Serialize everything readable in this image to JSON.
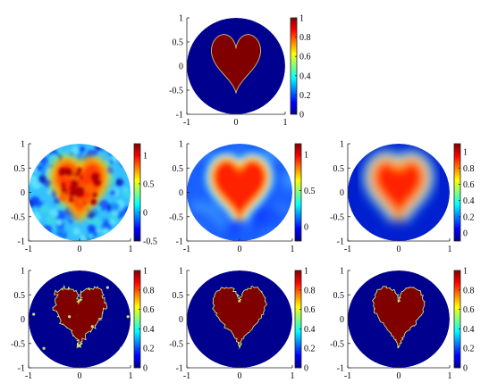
{
  "figure": {
    "layout": "3 rows; top row single centered panel, rows 2 and 3 have three panels each",
    "colormap": "jet",
    "disk_color": "#00008f",
    "object_color": "#800000",
    "object_shape": "heart",
    "domain_shape": "unit disk"
  },
  "chart_data": [
    {
      "type": "heatmap",
      "row": 1,
      "col": 2,
      "panel_variant": "exact",
      "xlim": [
        -1,
        1
      ],
      "ylim": [
        -1,
        1
      ],
      "xticks": [
        "-1",
        "0",
        "1"
      ],
      "yticks": [
        "1",
        "0.5",
        "0",
        "-0.5",
        "-1"
      ],
      "clim": [
        0,
        1
      ],
      "colorbar_ticks": [
        "1",
        "0.8",
        "0.6",
        "0.4",
        "0.2",
        "0"
      ]
    },
    {
      "type": "heatmap",
      "row": 2,
      "col": 1,
      "panel_variant": "noisy",
      "xlim": [
        -1,
        1
      ],
      "ylim": [
        -1,
        1
      ],
      "xticks": [
        "-1",
        "0",
        "1"
      ],
      "yticks": [
        "1",
        "0.5",
        "0",
        "-0.5",
        "-1"
      ],
      "clim": [
        -0.5,
        1.2
      ],
      "colorbar_ticks": [
        "1",
        "0.5",
        "0",
        "-0.5"
      ]
    },
    {
      "type": "heatmap",
      "row": 2,
      "col": 2,
      "panel_variant": "smooth",
      "xlim": [
        -1,
        1
      ],
      "ylim": [
        -1,
        1
      ],
      "xticks": [
        "-1",
        "0",
        "1"
      ],
      "yticks": [
        "1",
        "0.5",
        "0",
        "-0.5",
        "-1"
      ],
      "clim": [
        -0.2,
        1.15
      ],
      "colorbar_ticks": [
        "1",
        "0.5",
        "0"
      ]
    },
    {
      "type": "heatmap",
      "row": 2,
      "col": 3,
      "panel_variant": "smoother",
      "xlim": [
        -1,
        1
      ],
      "ylim": [
        -1,
        1
      ],
      "xticks": [
        "-1",
        "0",
        "1"
      ],
      "yticks": [
        "1",
        "0.5",
        "0",
        "-0.5",
        "-1"
      ],
      "clim": [
        -0.1,
        1.1
      ],
      "colorbar_ticks": [
        "1",
        "0.8",
        "0.6",
        "0.4",
        "0.2",
        "0"
      ]
    },
    {
      "type": "heatmap",
      "row": 3,
      "col": 1,
      "panel_variant": "threshold-rough",
      "xlim": [
        -1,
        1
      ],
      "ylim": [
        -1,
        1
      ],
      "xticks": [
        "-1",
        "0",
        "1"
      ],
      "yticks": [
        "1",
        "0.5",
        "0",
        "-0.5",
        "-1"
      ],
      "clim": [
        0,
        1
      ],
      "colorbar_ticks": [
        "1",
        "0.8",
        "0.6",
        "0.4",
        "0.2",
        "0"
      ]
    },
    {
      "type": "heatmap",
      "row": 3,
      "col": 2,
      "panel_variant": "threshold",
      "xlim": [
        -1,
        1
      ],
      "ylim": [
        -1,
        1
      ],
      "xticks": [
        "-1",
        "0",
        "1"
      ],
      "yticks": [
        "1",
        "0.5",
        "0",
        "-0.5",
        "-1"
      ],
      "clim": [
        0,
        1
      ],
      "colorbar_ticks": [
        "1",
        "0.8",
        "0.6",
        "0.4",
        "0.2",
        "0"
      ]
    },
    {
      "type": "heatmap",
      "row": 3,
      "col": 3,
      "panel_variant": "threshold",
      "xlim": [
        -1,
        1
      ],
      "ylim": [
        -1,
        1
      ],
      "xticks": [
        "-1",
        "0",
        "1"
      ],
      "yticks": [
        "1",
        "0.5",
        "0",
        "-0.5",
        "-1"
      ],
      "clim": [
        0,
        1
      ],
      "colorbar_ticks": [
        "1",
        "0.8",
        "0.6",
        "0.4",
        "0.2",
        "0"
      ]
    }
  ]
}
